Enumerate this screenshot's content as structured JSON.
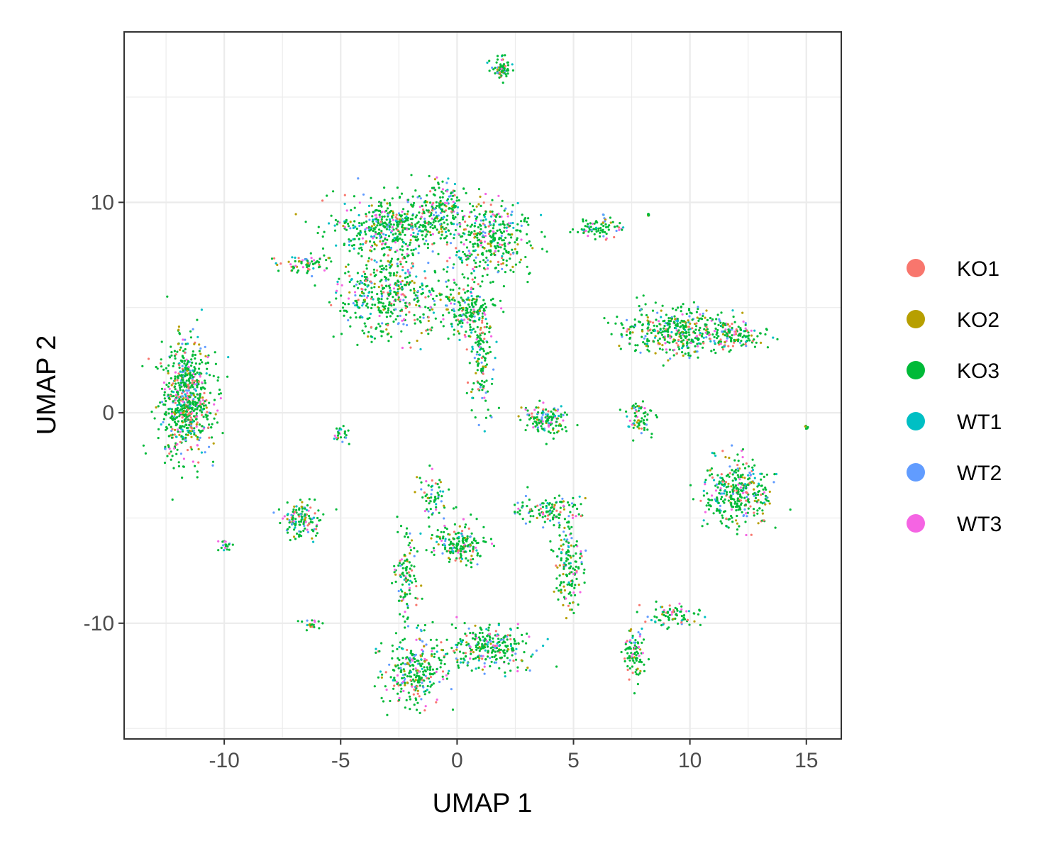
{
  "chart_data": {
    "type": "scatter",
    "title": "",
    "xlabel": "UMAP 1",
    "ylabel": "UMAP 2",
    "xlim": [
      -14.3,
      16.5
    ],
    "ylim": [
      -15.5,
      18.1
    ],
    "x_ticks": [
      -10,
      -5,
      0,
      5,
      10,
      15
    ],
    "y_ticks": [
      -10,
      0,
      10
    ],
    "grid": true,
    "legend_position": "right",
    "series": [
      {
        "name": "KO1",
        "color": "#F8766D"
      },
      {
        "name": "KO2",
        "color": "#B79F00"
      },
      {
        "name": "KO3",
        "color": "#00BA38"
      },
      {
        "name": "WT1",
        "color": "#00BFC4"
      },
      {
        "name": "WT2",
        "color": "#619CFF"
      },
      {
        "name": "WT3",
        "color": "#F564E3"
      }
    ],
    "clusters": [
      {
        "cx": -11.6,
        "cy": 0.6,
        "sx": 0.55,
        "sy": 1.4,
        "n": 700
      },
      {
        "cx": -2.6,
        "cy": 8.8,
        "sx": 1.3,
        "sy": 0.7,
        "n": 500
      },
      {
        "cx": 1.4,
        "cy": 8.4,
        "sx": 0.9,
        "sy": 0.9,
        "n": 350
      },
      {
        "cx": -3.0,
        "cy": 5.6,
        "sx": 1.1,
        "sy": 1.0,
        "n": 450
      },
      {
        "cx": 0.5,
        "cy": 5.0,
        "sx": 0.6,
        "sy": 0.8,
        "n": 220
      },
      {
        "cx": 1.0,
        "cy": 2.3,
        "sx": 0.25,
        "sy": 1.2,
        "n": 120
      },
      {
        "cx": -0.6,
        "cy": 9.8,
        "sx": 0.5,
        "sy": 0.6,
        "n": 120
      },
      {
        "cx": 1.9,
        "cy": 16.3,
        "sx": 0.25,
        "sy": 0.25,
        "n": 70
      },
      {
        "cx": -6.5,
        "cy": 7.1,
        "sx": 0.6,
        "sy": 0.2,
        "n": 70
      },
      {
        "cx": 6.1,
        "cy": 8.8,
        "sx": 0.5,
        "sy": 0.25,
        "n": 80
      },
      {
        "cx": 9.5,
        "cy": 3.9,
        "sx": 1.2,
        "sy": 0.55,
        "n": 420
      },
      {
        "cx": 12.0,
        "cy": 3.7,
        "sx": 0.7,
        "sy": 0.3,
        "n": 110
      },
      {
        "cx": 3.8,
        "cy": -0.3,
        "sx": 0.5,
        "sy": 0.35,
        "n": 140
      },
      {
        "cx": 7.8,
        "cy": -0.2,
        "sx": 0.3,
        "sy": 0.4,
        "n": 70
      },
      {
        "cx": 12.0,
        "cy": -3.8,
        "sx": 0.7,
        "sy": 0.8,
        "n": 360
      },
      {
        "cx": -6.7,
        "cy": -5.1,
        "sx": 0.4,
        "sy": 0.4,
        "n": 130
      },
      {
        "cx": 0.1,
        "cy": -6.2,
        "sx": 0.6,
        "sy": 0.5,
        "n": 180
      },
      {
        "cx": 1.4,
        "cy": -11.2,
        "sx": 0.9,
        "sy": 0.5,
        "n": 280
      },
      {
        "cx": -1.8,
        "cy": -12.3,
        "sx": 0.7,
        "sy": 0.8,
        "n": 280
      },
      {
        "cx": 4.8,
        "cy": -7.2,
        "sx": 0.3,
        "sy": 1.0,
        "n": 150
      },
      {
        "cx": 3.9,
        "cy": -4.6,
        "sx": 0.7,
        "sy": 0.35,
        "n": 120
      },
      {
        "cx": -2.2,
        "cy": -7.8,
        "sx": 0.25,
        "sy": 1.0,
        "n": 110
      },
      {
        "cx": 9.3,
        "cy": -9.6,
        "sx": 0.6,
        "sy": 0.25,
        "n": 80
      },
      {
        "cx": 7.6,
        "cy": -11.3,
        "sx": 0.25,
        "sy": 0.6,
        "n": 90
      },
      {
        "cx": -1.0,
        "cy": -4.0,
        "sx": 0.35,
        "sy": 0.6,
        "n": 60
      },
      {
        "cx": -10.0,
        "cy": -6.3,
        "sx": 0.15,
        "sy": 0.15,
        "n": 20
      },
      {
        "cx": -6.3,
        "cy": -10.0,
        "sx": 0.2,
        "sy": 0.12,
        "n": 20
      },
      {
        "cx": -5.0,
        "cy": -1.0,
        "sx": 0.2,
        "sy": 0.2,
        "n": 25
      },
      {
        "cx": 15.0,
        "cy": -0.7,
        "sx": 0.05,
        "sy": 0.05,
        "n": 6
      },
      {
        "cx": 8.2,
        "cy": 9.4,
        "sx": 0.05,
        "sy": 0.05,
        "n": 6
      }
    ]
  }
}
